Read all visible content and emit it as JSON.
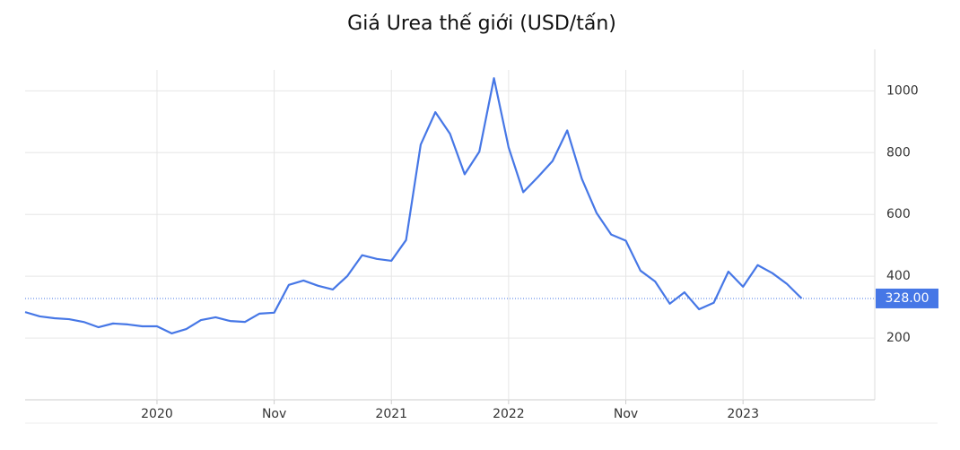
{
  "chart_data": {
    "type": "line",
    "title": "Giá Urea thế giới (USD/tấn)",
    "categories": [
      null,
      null,
      null,
      null,
      null,
      null,
      null,
      null,
      null,
      "2020",
      null,
      null,
      null,
      null,
      null,
      null,
      null,
      "Nov",
      null,
      null,
      null,
      null,
      null,
      null,
      null,
      "2021",
      null,
      null,
      null,
      null,
      null,
      null,
      null,
      "2022",
      null,
      null,
      null,
      null,
      null,
      null,
      null,
      "Nov",
      null,
      null,
      null,
      null,
      null,
      null,
      null,
      "2023",
      null,
      null,
      null,
      null
    ],
    "series": [
      {
        "name": "Urea",
        "color": "#4677e6",
        "values": [
          284,
          270,
          264,
          261,
          252,
          235,
          247,
          244,
          238,
          238,
          215,
          229,
          258,
          267,
          255,
          252,
          279,
          282,
          372,
          386,
          369,
          357,
          401,
          468,
          456,
          450,
          517,
          826,
          931,
          861,
          730,
          803,
          1041,
          817,
          672,
          721,
          773,
          872,
          715,
          605,
          535,
          515,
          418,
          383,
          311,
          348,
          293,
          314,
          415,
          366,
          436,
          410,
          375,
          328
        ]
      }
    ],
    "current_value": {
      "value": 328,
      "label": "328.00"
    },
    "ylim": [
      0,
      1120
    ],
    "yticks": [
      200,
      400,
      600,
      800,
      1000
    ],
    "grid": true
  }
}
